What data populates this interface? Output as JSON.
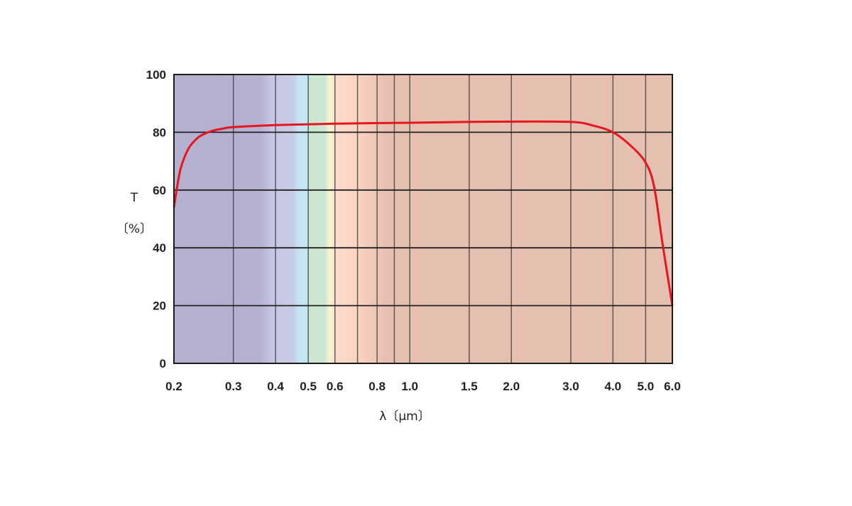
{
  "chart_data": {
    "type": "line",
    "title": "",
    "xlabel": "λ〔μm〕",
    "ylabel_line1": "T",
    "ylabel_line2": "〔%〕",
    "x_scale": "log",
    "xlim": [
      0.2,
      6.0
    ],
    "ylim": [
      0,
      100
    ],
    "grid": true,
    "x_ticks": [
      0.2,
      0.3,
      0.4,
      0.5,
      0.6,
      0.8,
      1.0,
      1.5,
      2.0,
      3.0,
      4.0,
      5.0,
      6.0
    ],
    "x_tick_labels": [
      "0.2",
      "0.3",
      "0.4",
      "0.5",
      "0.6",
      "0.8",
      "1.0",
      "1.5",
      "2.0",
      "3.0",
      "4.0",
      "5.0",
      "6.0"
    ],
    "x_minor_gridlines": [
      0.7,
      0.9
    ],
    "y_ticks": [
      0,
      20,
      40,
      60,
      80,
      100
    ],
    "y_tick_labels": [
      "0",
      "20",
      "40",
      "60",
      "80",
      "100"
    ],
    "series": [
      {
        "color": "#e8141e",
        "x": [
          0.2,
          0.205,
          0.21,
          0.22,
          0.23,
          0.24,
          0.26,
          0.28,
          0.3,
          0.4,
          0.6,
          1.0,
          1.5,
          2.0,
          3.0,
          3.5,
          4.0,
          4.5,
          5.0,
          5.3,
          5.6,
          6.0
        ],
        "y": [
          54,
          62,
          68,
          74,
          77,
          78.8,
          80.5,
          81.3,
          81.8,
          82.5,
          83,
          83.3,
          83.6,
          83.7,
          83.6,
          82.3,
          80,
          75.5,
          69.5,
          61,
          42,
          20
        ]
      }
    ],
    "background_bands": [
      {
        "x": 0.2,
        "color": "#b3b0d0"
      },
      {
        "x": 0.36,
        "color": "#b4b1d1"
      },
      {
        "x": 0.39,
        "color": "#c8c6e4"
      },
      {
        "x": 0.45,
        "color": "#c8cbe6"
      },
      {
        "x": 0.47,
        "color": "#c4e6f4"
      },
      {
        "x": 0.495,
        "color": "#c4e6f4"
      },
      {
        "x": 0.5,
        "color": "#cde5d3"
      },
      {
        "x": 0.56,
        "color": "#cde5d3"
      },
      {
        "x": 0.58,
        "color": "#fcf5cf"
      },
      {
        "x": 0.6,
        "color": "#fcdccb"
      },
      {
        "x": 0.7,
        "color": "#fbd3c2"
      },
      {
        "x": 0.85,
        "color": "#e5c0b0"
      },
      {
        "x": 6.0,
        "color": "#e5c0b0"
      }
    ]
  }
}
